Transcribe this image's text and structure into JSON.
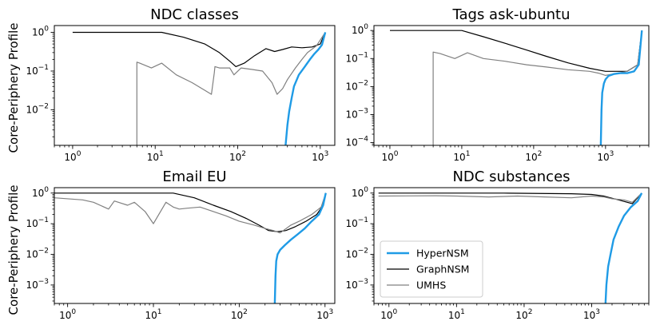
{
  "figure": {
    "ylabel": "Core-Periphery Profile",
    "legend": {
      "placement": "lower-left of bottom-right panel",
      "entries": [
        {
          "name": "HyperNSM",
          "color": "#1f9be6",
          "width": 2.4
        },
        {
          "name": "GraphNSM",
          "color": "#000000",
          "width": 1.2
        },
        {
          "name": "UMHS",
          "color": "#808080",
          "width": 1.2
        }
      ]
    }
  },
  "chart_data": [
    {
      "type": "line",
      "title": "NDC classes",
      "xscale": "log",
      "yscale": "log",
      "xlim": [
        0.6,
        1500
      ],
      "ylim": [
        0.0012,
        1.5
      ],
      "xticks": [
        {
          "v": 1,
          "b": "10",
          "e": "0"
        },
        {
          "v": 10,
          "b": "10",
          "e": "1"
        },
        {
          "v": 100,
          "b": "10",
          "e": "2"
        },
        {
          "v": 1000,
          "b": "10",
          "e": "3"
        }
      ],
      "yticks": [
        {
          "v": 0.01,
          "b": "10",
          "e": "−2"
        },
        {
          "v": 0.1,
          "b": "10",
          "e": "−1"
        },
        {
          "v": 1,
          "b": "10",
          "e": "0"
        }
      ],
      "series": [
        {
          "name": "GraphNSM",
          "x": [
            1,
            12,
            22,
            40,
            60,
            80,
            95,
            120,
            160,
            220,
            280,
            350,
            450,
            600,
            800,
            1000,
            1150
          ],
          "y": [
            1,
            1,
            0.75,
            0.5,
            0.3,
            0.18,
            0.13,
            0.16,
            0.25,
            0.38,
            0.32,
            0.36,
            0.42,
            0.4,
            0.42,
            0.5,
            1
          ]
        },
        {
          "name": "UMHS",
          "x": [
            6,
            6,
            6.5,
            9,
            12,
            18,
            28,
            48,
            52,
            53,
            60,
            80,
            90,
            110,
            150,
            200,
            260,
            300,
            350,
            400,
            500,
            600,
            700,
            900,
            1150
          ],
          "y": [
            0.0012,
            0.17,
            0.16,
            0.12,
            0.16,
            0.08,
            0.05,
            0.025,
            0.09,
            0.13,
            0.12,
            0.12,
            0.08,
            0.12,
            0.11,
            0.1,
            0.05,
            0.025,
            0.035,
            0.06,
            0.12,
            0.2,
            0.3,
            0.45,
            1
          ]
        },
        {
          "name": "HyperNSM",
          "x": [
            380,
            400,
            420,
            450,
            480,
            550,
            650,
            750,
            850,
            950,
            1050,
            1150
          ],
          "y": [
            0.0012,
            0.004,
            0.009,
            0.02,
            0.04,
            0.08,
            0.13,
            0.2,
            0.28,
            0.36,
            0.48,
            1
          ]
        }
      ]
    },
    {
      "type": "line",
      "title": "Tags ask-ubuntu",
      "xscale": "log",
      "yscale": "log",
      "xlim": [
        0.6,
        4000
      ],
      "ylim": [
        8e-05,
        1.5
      ],
      "xticks": [
        {
          "v": 1,
          "b": "10",
          "e": "0"
        },
        {
          "v": 10,
          "b": "10",
          "e": "1"
        },
        {
          "v": 100,
          "b": "10",
          "e": "2"
        },
        {
          "v": 1000,
          "b": "10",
          "e": "3"
        }
      ],
      "yticks": [
        {
          "v": 0.0001,
          "b": "10",
          "e": "−4"
        },
        {
          "v": 0.001,
          "b": "10",
          "e": "−3"
        },
        {
          "v": 0.01,
          "b": "10",
          "e": "−2"
        },
        {
          "v": 0.1,
          "b": "10",
          "e": "−1"
        },
        {
          "v": 1,
          "b": "10",
          "e": "0"
        }
      ],
      "series": [
        {
          "name": "GraphNSM",
          "x": [
            1,
            10,
            20,
            40,
            80,
            150,
            300,
            600,
            1000,
            2000,
            2800,
            3200
          ],
          "y": [
            1,
            1,
            0.6,
            0.35,
            0.2,
            0.12,
            0.07,
            0.045,
            0.035,
            0.035,
            0.06,
            1
          ]
        },
        {
          "name": "UMHS",
          "x": [
            4,
            4,
            5,
            8,
            12,
            20,
            40,
            80,
            150,
            300,
            600,
            800,
            1000,
            1500,
            2000,
            2800,
            3200
          ],
          "y": [
            8e-05,
            0.17,
            0.15,
            0.1,
            0.16,
            0.1,
            0.08,
            0.06,
            0.05,
            0.04,
            0.035,
            0.03,
            0.025,
            0.03,
            0.035,
            0.06,
            1
          ]
        },
        {
          "name": "HyperNSM",
          "x": [
            860,
            880,
            900,
            950,
            1000,
            1100,
            1300,
            1600,
            2000,
            2500,
            2900,
            3200
          ],
          "y": [
            8e-05,
            0.0015,
            0.006,
            0.013,
            0.018,
            0.024,
            0.028,
            0.03,
            0.03,
            0.035,
            0.06,
            1
          ]
        }
      ]
    },
    {
      "type": "line",
      "title": "Email EU",
      "xscale": "log",
      "yscale": "log",
      "xlim": [
        0.7,
        1300
      ],
      "ylim": [
        0.00025,
        1.5
      ],
      "xticks": [
        {
          "v": 1,
          "b": "10",
          "e": "0"
        },
        {
          "v": 10,
          "b": "10",
          "e": "1"
        },
        {
          "v": 100,
          "b": "10",
          "e": "2"
        },
        {
          "v": 1000,
          "b": "10",
          "e": "3"
        }
      ],
      "yticks": [
        {
          "v": 0.001,
          "b": "10",
          "e": "−3"
        },
        {
          "v": 0.01,
          "b": "10",
          "e": "−2"
        },
        {
          "v": 0.1,
          "b": "10",
          "e": "−1"
        },
        {
          "v": 1,
          "b": "10",
          "e": "0"
        }
      ],
      "series": [
        {
          "name": "GraphNSM",
          "x": [
            0.7,
            17,
            30,
            50,
            80,
            120,
            170,
            220,
            280,
            350,
            450,
            600,
            800,
            950,
            1020
          ],
          "y": [
            1,
            1,
            0.7,
            0.4,
            0.25,
            0.15,
            0.09,
            0.06,
            0.055,
            0.06,
            0.08,
            0.12,
            0.2,
            0.4,
            1
          ]
        },
        {
          "name": "UMHS",
          "x": [
            0.7,
            1.5,
            2,
            3,
            3.5,
            5,
            6,
            8,
            10,
            14,
            17,
            20,
            25,
            35,
            50,
            70,
            100,
            150,
            200,
            250,
            300,
            400,
            500,
            700,
            900,
            1020
          ],
          "y": [
            0.7,
            0.6,
            0.5,
            0.3,
            0.55,
            0.4,
            0.5,
            0.25,
            0.1,
            0.5,
            0.35,
            0.3,
            0.32,
            0.35,
            0.25,
            0.18,
            0.12,
            0.09,
            0.07,
            0.06,
            0.05,
            0.09,
            0.12,
            0.2,
            0.35,
            1
          ]
        },
        {
          "name": "HyperNSM",
          "x": [
            260,
            265,
            270,
            280,
            300,
            340,
            400,
            480,
            580,
            700,
            850,
            950,
            1020
          ],
          "y": [
            0.00025,
            0.002,
            0.006,
            0.01,
            0.014,
            0.02,
            0.03,
            0.045,
            0.07,
            0.12,
            0.2,
            0.4,
            1
          ]
        }
      ]
    },
    {
      "type": "line",
      "title": "NDC substances",
      "xscale": "log",
      "yscale": "log",
      "xlim": [
        0.6,
        7000
      ],
      "ylim": [
        0.00025,
        1.5
      ],
      "xticks": [
        {
          "v": 1,
          "b": "10",
          "e": "0"
        },
        {
          "v": 10,
          "b": "10",
          "e": "1"
        },
        {
          "v": 100,
          "b": "10",
          "e": "2"
        },
        {
          "v": 1000,
          "b": "10",
          "e": "3"
        }
      ],
      "yticks": [
        {
          "v": 0.001,
          "b": "10",
          "e": "−3"
        },
        {
          "v": 0.01,
          "b": "10",
          "e": "−2"
        },
        {
          "v": 0.1,
          "b": "10",
          "e": "−1"
        },
        {
          "v": 1,
          "b": "10",
          "e": "0"
        }
      ],
      "series": [
        {
          "name": "GraphNSM",
          "x": [
            0.7,
            50,
            500,
            1000,
            1500,
            2500,
            4000,
            5500
          ],
          "y": [
            1,
            1,
            0.95,
            0.9,
            0.8,
            0.6,
            0.45,
            1
          ]
        },
        {
          "name": "UMHS",
          "x": [
            0.7,
            5,
            10,
            30,
            80,
            200,
            500,
            1000,
            1500,
            2000,
            3000,
            4000,
            5500
          ],
          "y": [
            0.8,
            0.82,
            0.8,
            0.75,
            0.8,
            0.75,
            0.7,
            0.8,
            0.75,
            0.65,
            0.6,
            0.5,
            1
          ]
        },
        {
          "name": "HyperNSM",
          "x": [
            1600,
            1650,
            1750,
            1900,
            2100,
            2500,
            3000,
            3800,
            4800,
            5500
          ],
          "y": [
            0.00025,
            0.001,
            0.004,
            0.01,
            0.03,
            0.08,
            0.18,
            0.35,
            0.55,
            1
          ]
        }
      ]
    }
  ]
}
